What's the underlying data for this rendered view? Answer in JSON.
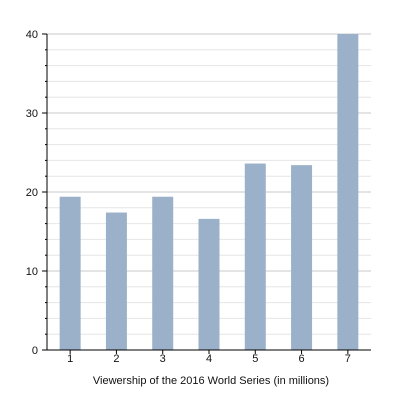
{
  "chart_data": {
    "type": "bar",
    "title": "",
    "xlabel": "Viewership of the 2016 World Series (in millions)",
    "ylabel": "",
    "categories": [
      "1",
      "2",
      "3",
      "4",
      "5",
      "6",
      "7"
    ],
    "values": [
      19.4,
      17.4,
      19.4,
      16.6,
      23.6,
      23.4,
      40.0
    ],
    "ylim": [
      0,
      40
    ],
    "yticks": [
      0,
      10,
      20,
      30,
      40
    ],
    "grid": true,
    "colors": {
      "bar": "#9bb1c9",
      "grid_major": "#c8c8c8",
      "grid_minor": "#e6e6e6",
      "axis": "#000000"
    }
  }
}
